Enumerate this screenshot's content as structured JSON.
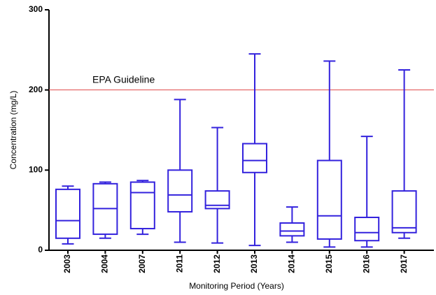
{
  "chart_data": {
    "type": "box",
    "x_label": "Monitoring Period (Years)",
    "y_label": "Concentration (mg/L)",
    "categories": [
      "2003",
      "2004",
      "2007",
      "2011",
      "2012",
      "2013",
      "2014",
      "2015",
      "2016",
      "2017"
    ],
    "min": [
      8,
      15,
      20,
      10,
      9,
      6,
      10,
      4,
      4,
      15
    ],
    "q1": [
      15,
      20,
      27,
      48,
      52,
      97,
      18,
      14,
      12,
      22
    ],
    "median": [
      37,
      52,
      72,
      69,
      56,
      112,
      24,
      43,
      22,
      28
    ],
    "q3": [
      76,
      83,
      85,
      100,
      74,
      133,
      34,
      112,
      41,
      74
    ],
    "max": [
      80,
      85,
      87,
      188,
      153,
      245,
      54,
      236,
      142,
      225
    ],
    "color": "#3322dd",
    "ylim": [
      0,
      300
    ],
    "yticks": [
      0,
      100,
      200,
      300
    ],
    "reference_line": {
      "label": "EPA Guideline",
      "value": 200,
      "color": "#e04848"
    }
  }
}
